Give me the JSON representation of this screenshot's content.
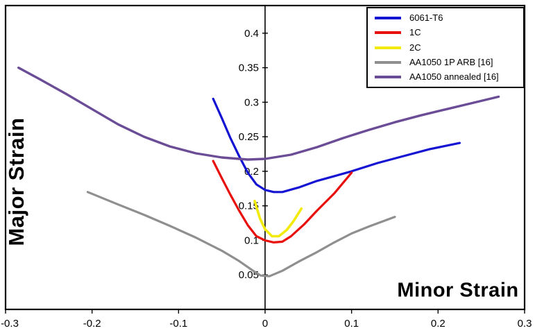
{
  "chart_data": {
    "type": "line",
    "title": "",
    "xlabel": "Minor Strain",
    "ylabel": "Major Strain",
    "xlim": [
      -0.3,
      0.3
    ],
    "ylim": [
      0,
      0.44
    ],
    "x_ticks": [
      -0.3,
      -0.2,
      -0.1,
      0,
      0.1,
      0.2,
      0.3
    ],
    "y_ticks": [
      0.05,
      0.1,
      0.15,
      0.2,
      0.25,
      0.3,
      0.35,
      0.4
    ],
    "grid": false,
    "legend_position": "top-right",
    "series": [
      {
        "name": "6061-T6",
        "color": "#1414d2",
        "width": 3.2,
        "points": [
          [
            -0.06,
            0.305
          ],
          [
            -0.05,
            0.277
          ],
          [
            -0.04,
            0.248
          ],
          [
            -0.03,
            0.222
          ],
          [
            -0.02,
            0.198
          ],
          [
            -0.01,
            0.181
          ],
          [
            0,
            0.173
          ],
          [
            0.01,
            0.17
          ],
          [
            0.02,
            0.17
          ],
          [
            0.04,
            0.177
          ],
          [
            0.06,
            0.186
          ],
          [
            0.08,
            0.193
          ],
          [
            0.1,
            0.2
          ],
          [
            0.13,
            0.212
          ],
          [
            0.16,
            0.222
          ],
          [
            0.19,
            0.232
          ],
          [
            0.225,
            0.241
          ]
        ]
      },
      {
        "name": "1C",
        "color": "#e8100c",
        "width": 3.2,
        "points": [
          [
            -0.06,
            0.215
          ],
          [
            -0.05,
            0.19
          ],
          [
            -0.04,
            0.166
          ],
          [
            -0.03,
            0.143
          ],
          [
            -0.02,
            0.122
          ],
          [
            -0.01,
            0.106
          ],
          [
            0,
            0.1
          ],
          [
            0.01,
            0.097
          ],
          [
            0.02,
            0.098
          ],
          [
            0.03,
            0.106
          ],
          [
            0.045,
            0.123
          ],
          [
            0.06,
            0.143
          ],
          [
            0.08,
            0.168
          ],
          [
            0.1,
            0.198
          ]
        ]
      },
      {
        "name": "2C",
        "color": "#f2ea0a",
        "width": 3.6,
        "points": [
          [
            -0.012,
            0.157
          ],
          [
            -0.006,
            0.132
          ],
          [
            0,
            0.116
          ],
          [
            0.008,
            0.106
          ],
          [
            0.016,
            0.106
          ],
          [
            0.025,
            0.115
          ],
          [
            0.033,
            0.128
          ],
          [
            0.042,
            0.146
          ]
        ]
      },
      {
        "name": "AA1050 1P ARB [16]",
        "color": "#8f8f8f",
        "width": 3.2,
        "points": [
          [
            -0.205,
            0.17
          ],
          [
            -0.17,
            0.152
          ],
          [
            -0.14,
            0.137
          ],
          [
            -0.11,
            0.121
          ],
          [
            -0.08,
            0.104
          ],
          [
            -0.05,
            0.085
          ],
          [
            -0.03,
            0.07
          ],
          [
            -0.015,
            0.057
          ],
          [
            -0.005,
            0.049
          ],
          [
            0.005,
            0.048
          ],
          [
            0.02,
            0.056
          ],
          [
            0.04,
            0.07
          ],
          [
            0.06,
            0.083
          ],
          [
            0.08,
            0.097
          ],
          [
            0.1,
            0.11
          ],
          [
            0.12,
            0.12
          ],
          [
            0.15,
            0.134
          ]
        ]
      },
      {
        "name": "AA1050 annealed [16]",
        "color": "#6b4c96",
        "width": 3.4,
        "points": [
          [
            -0.285,
            0.35
          ],
          [
            -0.26,
            0.333
          ],
          [
            -0.23,
            0.312
          ],
          [
            -0.2,
            0.29
          ],
          [
            -0.17,
            0.268
          ],
          [
            -0.14,
            0.25
          ],
          [
            -0.11,
            0.236
          ],
          [
            -0.08,
            0.226
          ],
          [
            -0.05,
            0.22
          ],
          [
            -0.02,
            0.217
          ],
          [
            0,
            0.218
          ],
          [
            0.03,
            0.224
          ],
          [
            0.06,
            0.235
          ],
          [
            0.09,
            0.248
          ],
          [
            0.12,
            0.26
          ],
          [
            0.15,
            0.271
          ],
          [
            0.18,
            0.281
          ],
          [
            0.21,
            0.29
          ],
          [
            0.24,
            0.299
          ],
          [
            0.27,
            0.308
          ]
        ]
      }
    ]
  }
}
